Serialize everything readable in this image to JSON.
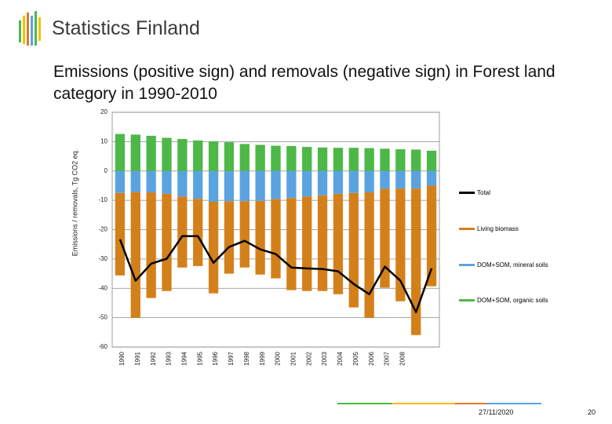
{
  "header": {
    "logo": "Statistics Finland"
  },
  "chart_data": {
    "type": "bar",
    "stacked": true,
    "title": "Emissions (positive sign) and removals (negative sign) in Forest land category  in 1990-2010",
    "ylabel": "Emissions / removals, Tg CO2 eq.",
    "categories": [
      "1990",
      "1991",
      "1992",
      "1993",
      "1994",
      "1995",
      "1996",
      "1997",
      "1998",
      "1999",
      "2000",
      "2001",
      "2002",
      "2003",
      "2004",
      "2005",
      "2006",
      "2007",
      "2008",
      null,
      null
    ],
    "ylim": [
      -60,
      20
    ],
    "yticks": [
      20,
      10,
      0,
      -10,
      -20,
      -30,
      -40,
      -50,
      -60
    ],
    "grid": true,
    "series": [
      {
        "name": "Total",
        "type": "line",
        "color": "#000000",
        "values": [
          -23.3,
          -37.4,
          -31.6,
          -29.9,
          -22.2,
          -22.2,
          -31.3,
          -25.9,
          -23.8,
          -26.7,
          -28.3,
          -32.9,
          -33.2,
          -33.4,
          -34.2,
          -38.5,
          -42.0,
          -32.6,
          -37.4,
          -48.1,
          -33.2
        ]
      },
      {
        "name": "Living biomass",
        "color": "#d4801a",
        "values": [
          -28.1,
          -42.8,
          -36.0,
          -33.1,
          -24.2,
          -22.9,
          -31.2,
          -24.7,
          -22.6,
          -25.1,
          -27.0,
          -31.4,
          -32.2,
          -32.6,
          -34.2,
          -39.0,
          -42.7,
          -33.7,
          -38.4,
          -49.9,
          -34.3
        ]
      },
      {
        "name": "DOM+SOM, mineral soils",
        "color": "#5ba3e0",
        "values": [
          -7.5,
          -7.2,
          -7.3,
          -7.8,
          -8.7,
          -9.5,
          -10.5,
          -10.3,
          -10.3,
          -10.2,
          -9.6,
          -9.2,
          -8.7,
          -8.3,
          -7.8,
          -7.5,
          -7.3,
          -6.1,
          -6.0,
          -6.0,
          -5.0
        ]
      },
      {
        "name": "DOM+SOM, organic soils",
        "color": "#4db848",
        "values": [
          12.6,
          12.4,
          12.0,
          11.3,
          10.9,
          10.4,
          10.1,
          9.8,
          9.2,
          8.9,
          8.6,
          8.5,
          8.2,
          8.0,
          7.9,
          7.9,
          7.8,
          7.6,
          7.4,
          7.3,
          6.9
        ]
      }
    ]
  },
  "footer": {
    "date": "27/11/2020",
    "page": "20"
  }
}
